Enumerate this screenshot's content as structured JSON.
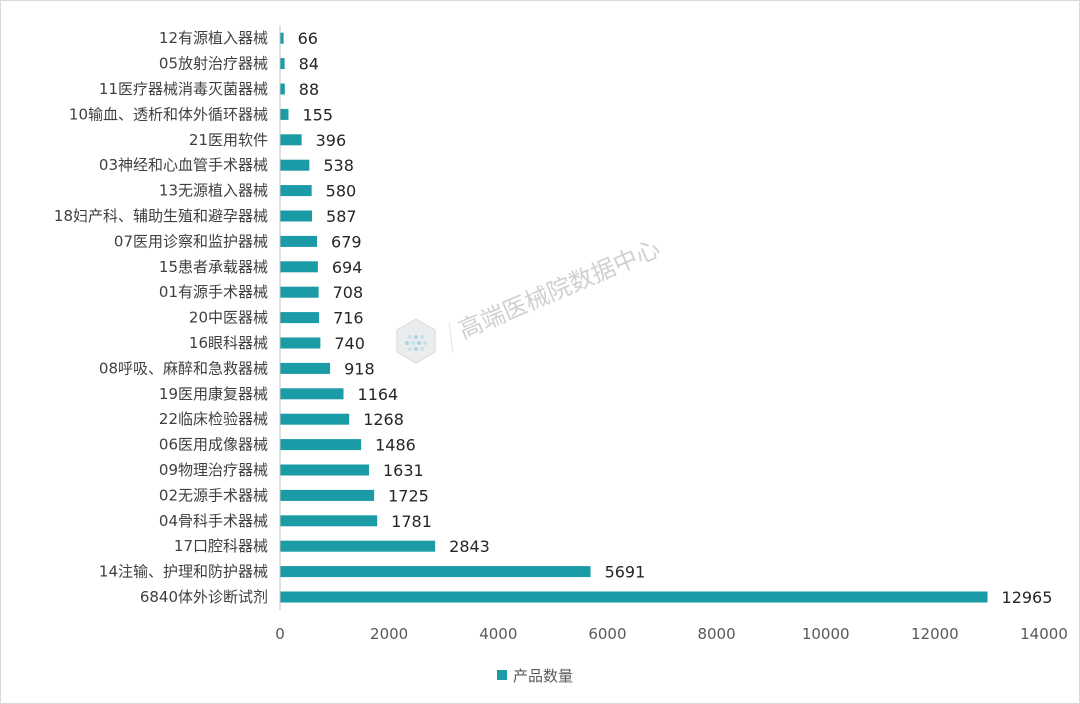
{
  "chart_data": {
    "type": "bar",
    "orientation": "horizontal",
    "categories": [
      "6840体外诊断试剂",
      "14注输、护理和防护器械",
      "17口腔科器械",
      "04骨科手术器械",
      "02无源手术器械",
      "09物理治疗器械",
      "06医用成像器械",
      "22临床检验器械",
      "19医用康复器械",
      "08呼吸、麻醉和急救器械",
      "16眼科器械",
      "20中医器械",
      "01有源手术器械",
      "15患者承载器械",
      "07医用诊察和监护器械",
      "18妇产科、辅助生殖和避孕器械",
      "13无源植入器械",
      "03神经和心血管手术器械",
      "21医用软件",
      "10输血、透析和体外循环器械",
      "11医疗器械消毒灭菌器械",
      "05放射治疗器械",
      "12有源植入器械"
    ],
    "series": [
      {
        "name": "产品数量",
        "color": "#1a9ba6",
        "values": [
          12965,
          5691,
          2843,
          1781,
          1725,
          1631,
          1486,
          1268,
          1164,
          918,
          740,
          716,
          708,
          694,
          679,
          587,
          580,
          538,
          396,
          155,
          88,
          84,
          66
        ]
      }
    ],
    "xlim": [
      0,
      14000
    ],
    "xticks": [
      "0",
      "2000",
      "4000",
      "6000",
      "8000",
      "10000",
      "12000",
      "14000"
    ],
    "grid": false,
    "data_labels": true,
    "legend_position": "bottom"
  },
  "watermark": {
    "text": "高端医械院数据中心"
  }
}
